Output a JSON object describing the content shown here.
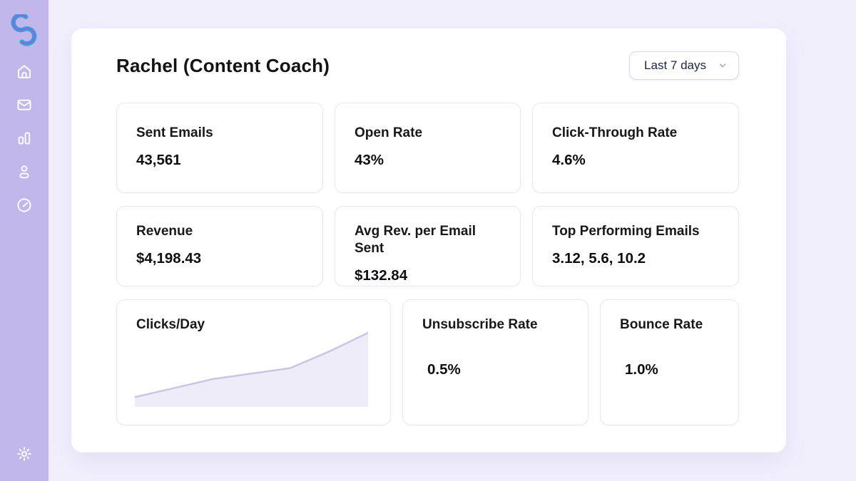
{
  "app": {
    "colors": {
      "page_background": "#f1eefc",
      "sidebar_background": "#c1b7eb",
      "panel_background": "#ffffff",
      "card_border": "#e9e6f2",
      "logo_blue": "#3d9edd",
      "logo_purple": "#8b68d9",
      "icon_color": "#ffffff"
    }
  },
  "sidebar": {
    "logo": "s-curve-logo",
    "nav_items": [
      {
        "icon": "home-icon"
      },
      {
        "icon": "mail-icon"
      },
      {
        "icon": "bar-chart-icon"
      },
      {
        "icon": "user-icon"
      },
      {
        "icon": "clock-icon"
      }
    ],
    "footer_item": {
      "icon": "gear-icon"
    }
  },
  "header": {
    "title": "Rachel (Content Coach)",
    "date_range": {
      "selected": "Last 7 days"
    }
  },
  "metrics": [
    {
      "label": "Sent Emails",
      "value": "43,561"
    },
    {
      "label": "Open Rate",
      "value": "43%"
    },
    {
      "label": "Click-Through Rate",
      "value": "4.6%"
    },
    {
      "label": "Revenue",
      "value": "$4,198.43"
    },
    {
      "label": "Avg Rev. per Email Sent",
      "value": "$132.84"
    },
    {
      "label": "Top Performing Emails",
      "value": "3.12, 5.6, 10.2"
    },
    {
      "label": "Unsubscribe Rate",
      "value": "0.5%"
    },
    {
      "label": "Bounce Rate",
      "value": "1.0%"
    }
  ],
  "chart_data": {
    "type": "area",
    "title": "Clicks/Day",
    "x": [
      1,
      2,
      3,
      4,
      5,
      6,
      7
    ],
    "values": [
      10,
      23,
      36,
      44,
      52,
      76,
      103
    ],
    "xlabel": "",
    "ylabel": "",
    "ylim": [
      0,
      110
    ],
    "grid": false,
    "legend": "none",
    "line_color": "#c9c5e3",
    "fill_color": "#edecf8",
    "note": "unlabeled sparkline area chart, values in relative click units rising left to right"
  }
}
